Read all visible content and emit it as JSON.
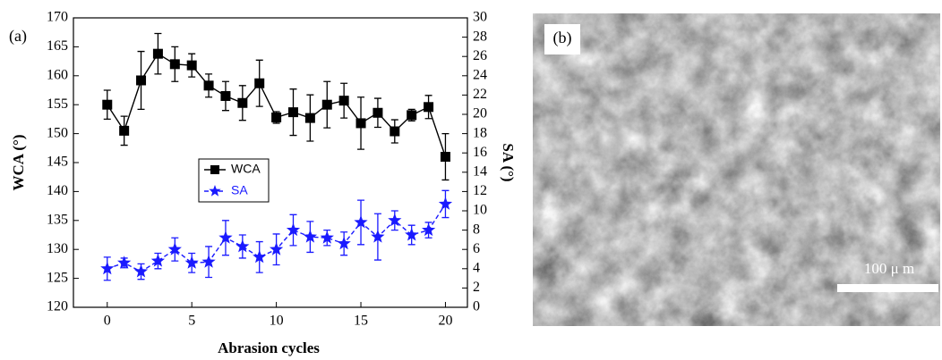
{
  "chart_data": {
    "type": "line",
    "panel_label": "(a)",
    "x_label": "Abrasion cycles",
    "y_label": "WCA (°)",
    "y2_label": "SA (°)",
    "x": [
      0,
      1,
      2,
      3,
      4,
      5,
      6,
      7,
      8,
      9,
      10,
      11,
      12,
      13,
      14,
      15,
      16,
      17,
      18,
      19,
      20
    ],
    "series": [
      {
        "name": "WCA",
        "color": "#000000",
        "marker": "square",
        "line_style": "solid",
        "axis": "y",
        "values": [
          155,
          150.5,
          159.2,
          163.8,
          162,
          161.8,
          158.3,
          156.5,
          155.3,
          158.7,
          152.8,
          153.7,
          152.7,
          155,
          155.7,
          151.8,
          153.6,
          150.4,
          153.2,
          154.6,
          146
        ],
        "errors": [
          2.5,
          2.5,
          5,
          3.5,
          3,
          2,
          2,
          2.5,
          3,
          4,
          1,
          4,
          4,
          4,
          3,
          4.5,
          2.5,
          2,
          1,
          2,
          4
        ]
      },
      {
        "name": "SA",
        "color": "#1a1aff",
        "marker": "star",
        "line_style": "dashed",
        "axis": "y2",
        "values": [
          4,
          4.6,
          3.7,
          4.8,
          6,
          4.6,
          4.7,
          7.2,
          6.3,
          5.2,
          6,
          8,
          7.3,
          7.2,
          6.6,
          8.8,
          7.3,
          9,
          7.5,
          8,
          10.7
        ],
        "errors": [
          1.2,
          0.5,
          0.8,
          0.8,
          1.2,
          1,
          1.6,
          1.8,
          1.2,
          1.6,
          1.6,
          1.6,
          1.6,
          0.8,
          1.2,
          2.3,
          2.4,
          1,
          1,
          0.8,
          1.4
        ]
      }
    ],
    "xlim": [
      -2,
      21.3
    ],
    "xticks": [
      0,
      5,
      10,
      15,
      20
    ],
    "ylim": [
      120,
      170
    ],
    "yticks": [
      120,
      125,
      130,
      135,
      140,
      145,
      150,
      155,
      160,
      165,
      170
    ],
    "y2lim": [
      0,
      30
    ],
    "y2ticks": [
      0,
      2,
      4,
      6,
      8,
      10,
      12,
      14,
      16,
      18,
      20,
      22,
      24,
      26,
      28,
      30
    ],
    "grid": false,
    "legend": "center"
  },
  "image": {
    "panel_label": "(b)",
    "scale_label": "100 μ m"
  }
}
